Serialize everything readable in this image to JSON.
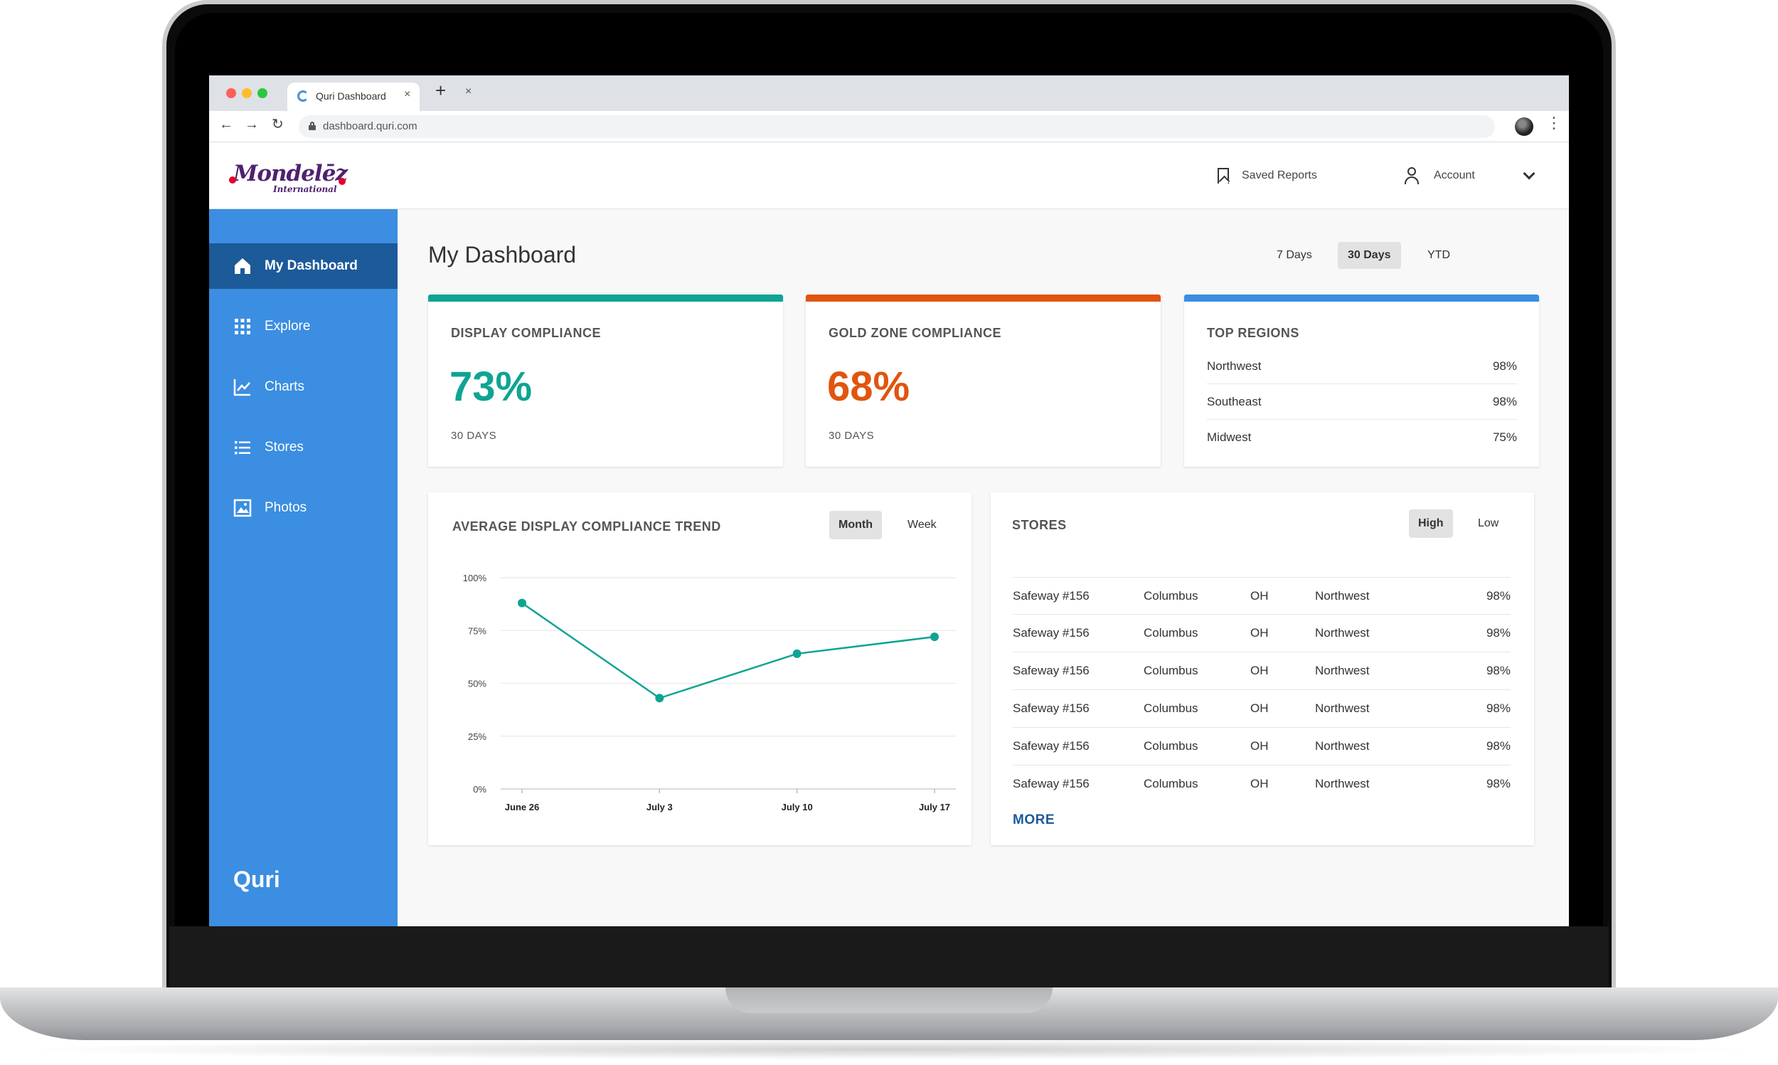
{
  "browser": {
    "tab_title": "Quri Dashboard",
    "tab_close": "×",
    "new_tab": "+",
    "window_close": "×",
    "url": "dashboard.quri.com",
    "nav": {
      "back": "←",
      "forward": "→",
      "reload": "↻",
      "menu": "⋮"
    }
  },
  "header": {
    "logo_main": "Mondelēz",
    "logo_sub": "International",
    "saved_reports": "Saved Reports",
    "account": "Account"
  },
  "sidebar": {
    "items": [
      {
        "label": "My Dashboard",
        "icon": "home-icon"
      },
      {
        "label": "Explore",
        "icon": "grid-icon"
      },
      {
        "label": "Charts",
        "icon": "line-chart-icon"
      },
      {
        "label": "Stores",
        "icon": "list-icon"
      },
      {
        "label": "Photos",
        "icon": "image-icon"
      }
    ],
    "active_index": 0,
    "brand": "Quri"
  },
  "main": {
    "title": "My Dashboard",
    "ranges": [
      "7 Days",
      "30 Days",
      "YTD"
    ],
    "active_range": "30 Days",
    "display_compliance": {
      "heading": "DISPLAY COMPLIANCE",
      "value": "73%",
      "period": "30 DAYS",
      "color": "#0ea493"
    },
    "gold_zone": {
      "heading": "GOLD ZONE COMPLIANCE",
      "value": "68%",
      "period": "30 DAYS",
      "color": "#e0550f"
    },
    "top_regions": {
      "heading": "TOP REGIONS",
      "color": "#3b8ee1",
      "rows": [
        {
          "name": "Northwest",
          "value": "98%"
        },
        {
          "name": "Southeast",
          "value": "98%"
        },
        {
          "name": "Midwest",
          "value": "75%"
        }
      ]
    },
    "trend": {
      "heading": "AVERAGE DISPLAY COMPLIANCE TREND",
      "toggles": [
        "Month",
        "Week"
      ],
      "active_toggle": "Month"
    },
    "stores": {
      "heading": "STORES",
      "toggles": [
        "High",
        "Low"
      ],
      "active_toggle": "High",
      "rows": [
        {
          "store": "Safeway #156",
          "city": "Columbus",
          "state": "OH",
          "region": "Northwest",
          "value": "98%"
        },
        {
          "store": "Safeway #156",
          "city": "Columbus",
          "state": "OH",
          "region": "Northwest",
          "value": "98%"
        },
        {
          "store": "Safeway #156",
          "city": "Columbus",
          "state": "OH",
          "region": "Northwest",
          "value": "98%"
        },
        {
          "store": "Safeway #156",
          "city": "Columbus",
          "state": "OH",
          "region": "Northwest",
          "value": "98%"
        },
        {
          "store": "Safeway #156",
          "city": "Columbus",
          "state": "OH",
          "region": "Northwest",
          "value": "98%"
        },
        {
          "store": "Safeway #156",
          "city": "Columbus",
          "state": "OH",
          "region": "Northwest",
          "value": "98%"
        }
      ],
      "more": "MORE"
    }
  },
  "chart_data": {
    "type": "line",
    "categories": [
      "June 26",
      "July 3",
      "July 10",
      "July 17"
    ],
    "series": [
      {
        "values": [
          88,
          43,
          64,
          72
        ],
        "color": "#0ea493"
      }
    ],
    "ylim": [
      0,
      100
    ],
    "yticks": [
      "0%",
      "25%",
      "50%",
      "75%",
      "100%"
    ],
    "ytick_values": [
      0,
      25,
      50,
      75,
      100
    ],
    "grid": true
  }
}
